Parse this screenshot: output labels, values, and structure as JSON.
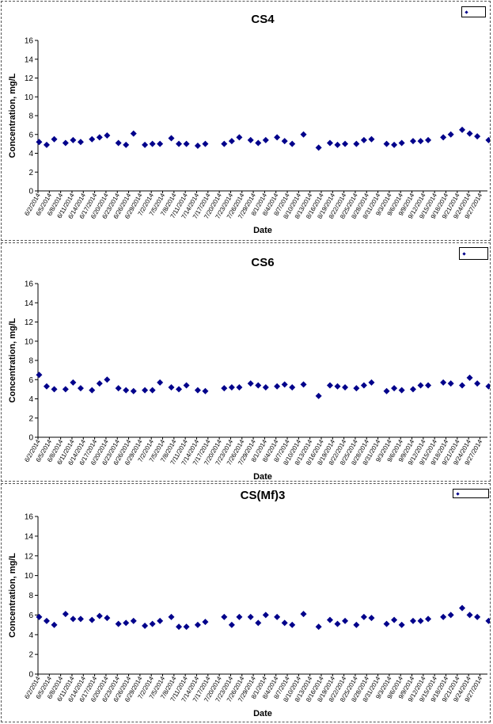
{
  "charts": [
    {
      "type": "scatter",
      "title": "CS4",
      "xlabel": "Date",
      "ylabel": "Concentration, mg/L",
      "ylim": [
        0,
        16
      ],
      "yticks": [
        0,
        2,
        4,
        6,
        8,
        10,
        12,
        14,
        16
      ],
      "grid": false,
      "legend": "top-right",
      "legend_label": "",
      "marker": "diamond",
      "marker_color": "#00008b",
      "xticks": [
        "6/2/2014",
        "6/5/2014",
        "6/8/2014",
        "6/11/2014",
        "6/14/2014",
        "6/17/2014",
        "6/20/2014",
        "6/23/2014",
        "6/26/2014",
        "6/29/2014",
        "7/2/2014",
        "7/5/2014",
        "7/8/2014",
        "7/11/2014",
        "7/14/2014",
        "7/17/2014",
        "7/20/2014",
        "7/23/2014",
        "7/26/2014",
        "7/29/2014",
        "8/1/2014",
        "8/4/2014",
        "8/7/2014",
        "8/10/2014",
        "8/13/2014",
        "8/16/2014",
        "8/19/2014",
        "8/22/2014",
        "8/25/2014",
        "8/28/2014",
        "8/31/2014",
        "9/3/2014",
        "9/6/2014",
        "9/9/2014",
        "9/12/2014",
        "9/15/2014",
        "9/18/2014",
        "9/21/2014",
        "9/24/2014",
        "9/27/2014"
      ],
      "x": [
        "6/2/2014",
        "6/4/2014",
        "6/6/2014",
        "6/9/2014",
        "6/11/2014",
        "6/13/2014",
        "6/16/2014",
        "6/18/2014",
        "6/20/2014",
        "6/23/2014",
        "6/25/2014",
        "6/27/2014",
        "6/30/2014",
        "7/2/2014",
        "7/4/2014",
        "7/7/2014",
        "7/9/2014",
        "7/11/2014",
        "7/14/2014",
        "7/16/2014",
        "7/21/2014",
        "7/23/2014",
        "7/25/2014",
        "7/28/2014",
        "7/30/2014",
        "8/1/2014",
        "8/4/2014",
        "8/6/2014",
        "8/8/2014",
        "8/11/2014",
        "8/15/2014",
        "8/18/2014",
        "8/20/2014",
        "8/22/2014",
        "8/25/2014",
        "8/27/2014",
        "8/29/2014",
        "9/2/2014",
        "9/4/2014",
        "9/6/2014",
        "9/9/2014",
        "9/11/2014",
        "9/13/2014",
        "9/17/2014",
        "9/19/2014",
        "9/22/2014",
        "9/24/2014",
        "9/26/2014",
        "9/29/2014"
      ],
      "y": [
        5.2,
        4.9,
        5.5,
        5.1,
        5.4,
        5.2,
        5.5,
        5.7,
        5.9,
        5.1,
        4.9,
        6.1,
        4.9,
        5.0,
        5.0,
        5.6,
        5.0,
        5.0,
        4.8,
        5.0,
        5.0,
        5.3,
        5.7,
        5.4,
        5.1,
        5.4,
        5.7,
        5.3,
        5.0,
        6.0,
        4.6,
        5.1,
        4.9,
        5.0,
        5.0,
        5.4,
        5.5,
        5.0,
        4.9,
        5.1,
        5.3,
        5.3,
        5.4,
        5.7,
        6.0,
        6.5,
        6.1,
        5.8,
        5.4
      ]
    },
    {
      "type": "scatter",
      "title": "CS6",
      "xlabel": "Date",
      "ylabel": "Concentration, mg/L",
      "ylim": [
        0,
        16
      ],
      "yticks": [
        0,
        2,
        4,
        6,
        8,
        10,
        12,
        14,
        16
      ],
      "grid": false,
      "legend": "top-right",
      "legend_label": "",
      "marker": "diamond",
      "marker_color": "#00008b",
      "xticks": [
        "6/2/2014",
        "6/5/2014",
        "6/8/2014",
        "6/11/2014",
        "6/14/2014",
        "6/17/2014",
        "6/20/2014",
        "6/23/2014",
        "6/26/2014",
        "6/29/2014",
        "7/2/2014",
        "7/5/2014",
        "7/8/2014",
        "7/11/2014",
        "7/14/2014",
        "7/17/2014",
        "7/20/2014",
        "7/23/2014",
        "7/26/2014",
        "7/29/2014",
        "8/1/2014",
        "8/4/2014",
        "8/7/2014",
        "8/10/2014",
        "8/13/2014",
        "8/16/2014",
        "8/19/2014",
        "8/22/2014",
        "8/25/2014",
        "8/28/2014",
        "8/31/2014",
        "9/3/2014",
        "9/6/2014",
        "9/9/2014",
        "9/12/2014",
        "9/15/2014",
        "9/18/2014",
        "9/21/2014",
        "9/24/2014",
        "9/27/2014"
      ],
      "x": [
        "6/2/2014",
        "6/4/2014",
        "6/6/2014",
        "6/9/2014",
        "6/11/2014",
        "6/13/2014",
        "6/16/2014",
        "6/18/2014",
        "6/20/2014",
        "6/23/2014",
        "6/25/2014",
        "6/27/2014",
        "6/30/2014",
        "7/2/2014",
        "7/4/2014",
        "7/7/2014",
        "7/9/2014",
        "7/11/2014",
        "7/14/2014",
        "7/16/2014",
        "7/21/2014",
        "7/23/2014",
        "7/25/2014",
        "7/28/2014",
        "7/30/2014",
        "8/1/2014",
        "8/4/2014",
        "8/6/2014",
        "8/8/2014",
        "8/11/2014",
        "8/15/2014",
        "8/18/2014",
        "8/20/2014",
        "8/22/2014",
        "8/25/2014",
        "8/27/2014",
        "8/29/2014",
        "9/2/2014",
        "9/4/2014",
        "9/6/2014",
        "9/9/2014",
        "9/11/2014",
        "9/13/2014",
        "9/17/2014",
        "9/19/2014",
        "9/22/2014",
        "9/24/2014",
        "9/26/2014",
        "9/29/2014"
      ],
      "y": [
        6.5,
        5.3,
        5.0,
        5.0,
        5.7,
        5.1,
        4.9,
        5.6,
        6.0,
        5.1,
        4.9,
        4.8,
        4.9,
        4.9,
        5.7,
        5.2,
        5.0,
        5.4,
        4.9,
        4.8,
        5.1,
        5.2,
        5.2,
        5.6,
        5.4,
        5.2,
        5.3,
        5.5,
        5.2,
        5.5,
        4.3,
        5.4,
        5.3,
        5.2,
        5.1,
        5.4,
        5.7,
        4.8,
        5.1,
        4.9,
        5.0,
        5.4,
        5.4,
        5.7,
        5.6,
        5.4,
        6.2,
        5.6,
        5.3
      ]
    },
    {
      "type": "scatter",
      "title": "CS(Mf)3",
      "xlabel": "Date",
      "ylabel": "Concentration, mg/L",
      "ylim": [
        0,
        16
      ],
      "yticks": [
        0,
        2,
        4,
        6,
        8,
        10,
        12,
        14,
        16
      ],
      "grid": false,
      "legend": "top-right",
      "legend_label": "",
      "marker": "diamond",
      "marker_color": "#00008b",
      "xticks": [
        "6/2/2014",
        "6/5/2014",
        "6/8/2014",
        "6/11/2014",
        "6/14/2014",
        "6/17/2014",
        "6/20/2014",
        "6/23/2014",
        "6/26/2014",
        "6/29/2014",
        "7/2/2014",
        "7/5/2014",
        "7/8/2014",
        "7/11/2014",
        "7/14/2014",
        "7/17/2014",
        "7/20/2014",
        "7/23/2014",
        "7/26/2014",
        "7/29/2014",
        "8/1/2014",
        "8/4/2014",
        "8/7/2014",
        "8/10/2014",
        "8/13/2014",
        "8/16/2014",
        "8/19/2014",
        "8/22/2014",
        "8/25/2014",
        "8/28/2014",
        "8/31/2014",
        "9/3/2014",
        "9/6/2014",
        "9/9/2014",
        "9/12/2014",
        "9/15/2014",
        "9/18/2014",
        "9/21/2014",
        "9/24/2014",
        "9/27/2014"
      ],
      "x": [
        "6/2/2014",
        "6/4/2014",
        "6/6/2014",
        "6/9/2014",
        "6/11/2014",
        "6/13/2014",
        "6/16/2014",
        "6/18/2014",
        "6/20/2014",
        "6/23/2014",
        "6/25/2014",
        "6/27/2014",
        "6/30/2014",
        "7/2/2014",
        "7/4/2014",
        "7/7/2014",
        "7/9/2014",
        "7/11/2014",
        "7/14/2014",
        "7/16/2014",
        "7/21/2014",
        "7/23/2014",
        "7/25/2014",
        "7/28/2014",
        "7/30/2014",
        "8/1/2014",
        "8/4/2014",
        "8/6/2014",
        "8/8/2014",
        "8/11/2014",
        "8/15/2014",
        "8/18/2014",
        "8/20/2014",
        "8/22/2014",
        "8/25/2014",
        "8/27/2014",
        "8/29/2014",
        "9/2/2014",
        "9/4/2014",
        "9/6/2014",
        "9/9/2014",
        "9/11/2014",
        "9/13/2014",
        "9/17/2014",
        "9/19/2014",
        "9/22/2014",
        "9/24/2014",
        "9/26/2014",
        "9/29/2014"
      ],
      "y": [
        5.8,
        5.4,
        5.0,
        6.1,
        5.6,
        5.6,
        5.5,
        5.9,
        5.7,
        5.1,
        5.2,
        5.4,
        4.9,
        5.1,
        5.4,
        5.8,
        4.8,
        4.8,
        5.0,
        5.3,
        5.8,
        5.0,
        5.8,
        5.8,
        5.2,
        6.0,
        5.8,
        5.2,
        5.0,
        6.1,
        4.8,
        5.5,
        5.1,
        5.4,
        5.0,
        5.8,
        5.7,
        5.1,
        5.5,
        5.0,
        5.4,
        5.4,
        5.6,
        5.8,
        6.0,
        6.7,
        6.0,
        5.8,
        5.4
      ]
    }
  ]
}
